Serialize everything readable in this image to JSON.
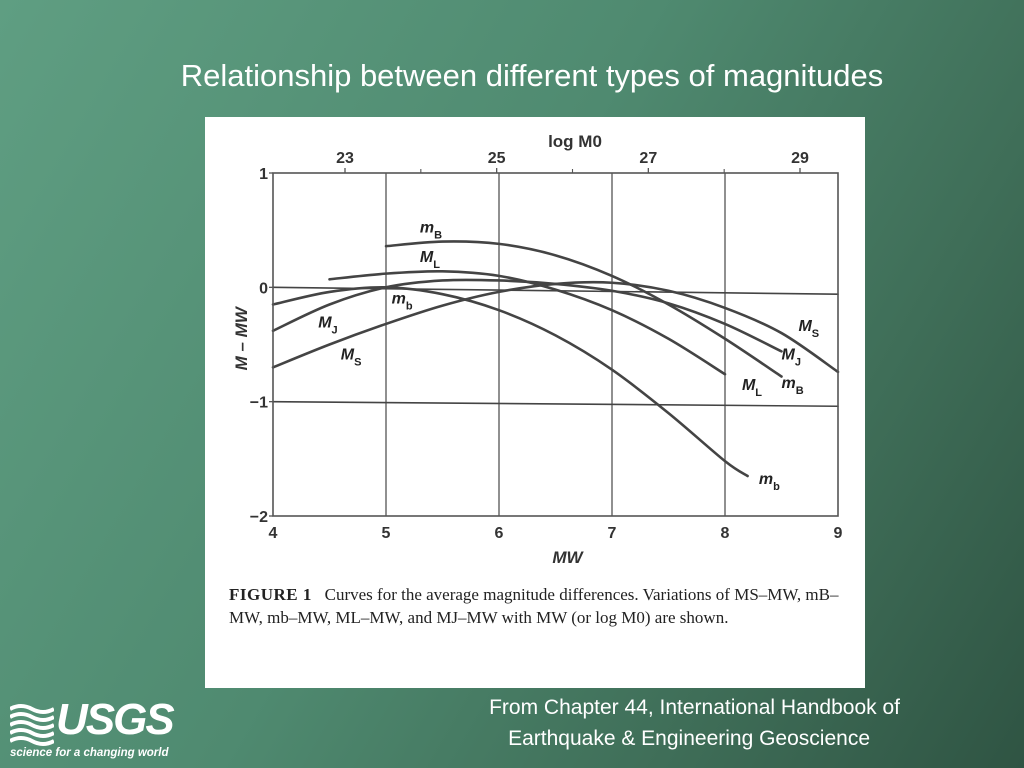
{
  "slide": {
    "title": "Relationship between different types of magnitudes",
    "source_line1": "From Chapter 44, International Handbook of",
    "source_line2": "Earthquake & Engineering Geoscience"
  },
  "logo": {
    "name": "USGS",
    "tagline": "science for a changing world"
  },
  "caption": {
    "label": "FIGURE 1",
    "text": "Curves for the average magnitude differences. Variations of MS–MW, mB–MW, mb–MW, ML–MW, and MJ–MW with MW (or log M0) are shown."
  },
  "colors": {
    "curve": "#444444",
    "grid": "#555555",
    "background": "#ffffff"
  },
  "chart_data": {
    "type": "line",
    "xlabel": "MW",
    "ylabel": "M – MW",
    "top_axis_label": "log M0",
    "xlim": [
      4,
      9
    ],
    "ylim": [
      -2,
      1
    ],
    "x_ticks": [
      4,
      5,
      6,
      7,
      8,
      9
    ],
    "y_ticks": [
      1,
      0,
      -1,
      -2
    ],
    "top_ticks": [
      23,
      25,
      27,
      29
    ],
    "grid": true,
    "series": [
      {
        "name": "mB",
        "x": [
          5.0,
          5.5,
          6.0,
          6.5,
          7.0,
          7.5,
          8.0,
          8.5
        ],
        "y": [
          0.36,
          0.4,
          0.38,
          0.28,
          0.1,
          -0.15,
          -0.45,
          -0.78
        ]
      },
      {
        "name": "ML",
        "x": [
          4.5,
          5.0,
          5.5,
          6.0,
          6.5,
          7.0,
          7.5,
          8.0
        ],
        "y": [
          0.07,
          0.12,
          0.14,
          0.1,
          -0.02,
          -0.2,
          -0.45,
          -0.76
        ]
      },
      {
        "name": "mb",
        "x": [
          4.0,
          4.5,
          5.0,
          5.5,
          6.0,
          6.5,
          7.0,
          7.5,
          8.0,
          8.2
        ],
        "y": [
          -0.15,
          -0.04,
          0.0,
          -0.06,
          -0.2,
          -0.42,
          -0.72,
          -1.1,
          -1.52,
          -1.65
        ]
      },
      {
        "name": "MJ",
        "x": [
          4.0,
          4.5,
          5.0,
          5.5,
          6.0,
          6.5,
          7.0,
          7.5,
          8.0,
          8.5
        ],
        "y": [
          -0.38,
          -0.15,
          0.0,
          0.06,
          0.06,
          0.03,
          -0.03,
          -0.14,
          -0.32,
          -0.56
        ]
      },
      {
        "name": "MS",
        "x": [
          4.0,
          4.5,
          5.0,
          5.5,
          6.0,
          6.5,
          7.0,
          7.5,
          8.0,
          8.5,
          9.0
        ],
        "y": [
          -0.7,
          -0.5,
          -0.32,
          -0.16,
          -0.04,
          0.03,
          0.04,
          -0.03,
          -0.18,
          -0.4,
          -0.74
        ]
      },
      {
        "name": "log M0 line",
        "x": [
          4.0,
          9.0
        ],
        "y": [
          0.0,
          -0.06
        ]
      },
      {
        "name": "M = MW − 1",
        "x": [
          4.0,
          9.0
        ],
        "y": [
          -1.0,
          -1.04
        ]
      }
    ],
    "curve_labels": [
      {
        "series": "mB",
        "text": "mB",
        "sub": "B",
        "x": 5.3,
        "y": 0.48
      },
      {
        "series": "ML",
        "text": "ML",
        "sub": "L",
        "x": 5.3,
        "y": 0.22
      },
      {
        "series": "mb",
        "text": "mb",
        "sub": "b",
        "x": 5.05,
        "y": -0.14
      },
      {
        "series": "MJ",
        "text": "MJ",
        "sub": "J",
        "x": 4.4,
        "y": -0.35
      },
      {
        "series": "MS",
        "text": "MS",
        "sub": "S",
        "x": 4.6,
        "y": -0.63
      },
      {
        "series": "MS",
        "text": "MS",
        "sub": "S",
        "x": 8.65,
        "y": -0.38
      },
      {
        "series": "MJ",
        "text": "MJ",
        "sub": "J",
        "x": 8.5,
        "y": -0.63
      },
      {
        "series": "mB",
        "text": "mB",
        "sub": "B",
        "x": 8.5,
        "y": -0.88
      },
      {
        "series": "ML",
        "text": "ML",
        "sub": "L",
        "x": 8.15,
        "y": -0.9
      },
      {
        "series": "mb",
        "text": "mb",
        "sub": "b",
        "x": 8.3,
        "y": -1.72
      }
    ]
  }
}
